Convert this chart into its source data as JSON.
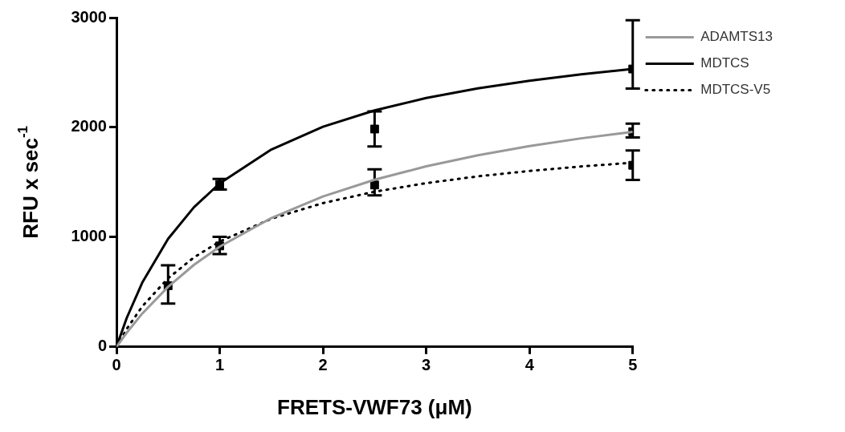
{
  "chart_data": {
    "type": "line",
    "xlabel": "FRETS-VWF73 (μM)",
    "ylabel": "RFU x sec$^{-1}$",
    "xlim": [
      0,
      5
    ],
    "xticks": [
      0,
      1,
      2,
      3,
      4,
      5
    ],
    "ylim": [
      0,
      3000
    ],
    "yticks": [
      0,
      1000,
      2000,
      3000
    ],
    "grid": false,
    "legend": "top right",
    "series": [
      {
        "name": "ADAMTS13",
        "marker": "none",
        "color": "#999999",
        "line_style": "solid",
        "x": [
          0,
          0.1,
          0.25,
          0.5,
          0.75,
          1,
          1.5,
          2,
          2.5,
          3,
          3.5,
          4,
          4.5,
          5
        ],
        "values": [
          0,
          130,
          304,
          547,
          747,
          913,
          1174,
          1371,
          1523,
          1645,
          1746,
          1829,
          1900,
          1960
        ]
      },
      {
        "name": "MDTCS",
        "marker": "none",
        "color": "#000000",
        "line_style": "solid",
        "x": [
          0,
          0.1,
          0.25,
          0.5,
          0.75,
          1,
          1.5,
          2,
          2.5,
          3,
          3.5,
          4,
          4.5,
          5
        ],
        "values": [
          0,
          265,
          586,
          984,
          1272,
          1490,
          1798,
          2006,
          2155,
          2268,
          2355,
          2425,
          2484,
          2532
        ]
      },
      {
        "name": "MDTCS-V5",
        "marker": "none",
        "color": "#000000",
        "line_style": "dotted",
        "x": [
          0,
          0.1,
          0.25,
          0.5,
          0.75,
          1,
          1.5,
          2,
          2.5,
          3,
          3.5,
          4,
          4.5,
          5
        ],
        "values": [
          0,
          165,
          369,
          625,
          815,
          960,
          1168,
          1310,
          1414,
          1492,
          1554,
          1603,
          1644,
          1678
        ]
      },
      {
        "type": "scatter",
        "color": "#000000",
        "x": [
          1,
          2.5,
          5
        ],
        "values": [
          1480,
          1985,
          2532
        ],
        "errors": [
          [
            1433,
            1530
          ],
          [
            1826,
            2145
          ],
          [
            2353,
            2977
          ]
        ]
      },
      {
        "type": "scatter",
        "marker": "square",
        "color": "#000000",
        "x": [
          0.5,
          1,
          2.5,
          5,
          5
        ],
        "values": [
          557,
          920,
          1475,
          1960,
          1655
        ],
        "errors": [
          [
            394,
            743
          ],
          [
            846,
            1002
          ],
          [
            1380,
            1618
          ],
          [
            1908,
            2034
          ],
          [
            1522,
            1789
          ]
        ]
      }
    ]
  }
}
